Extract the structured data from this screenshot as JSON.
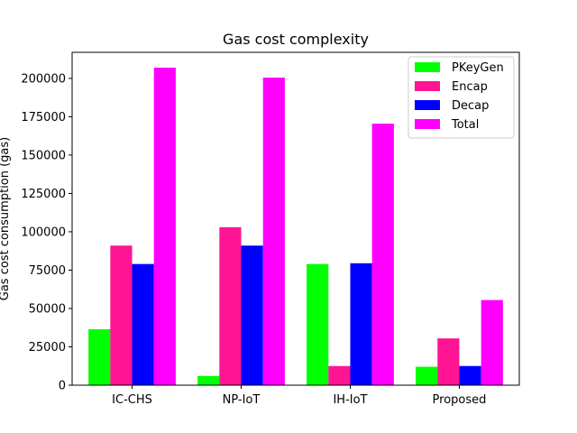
{
  "chart_data": {
    "type": "bar",
    "title": "Gas cost complexity",
    "xlabel": "",
    "ylabel": "Gas cost consumption (gas)",
    "categories": [
      "IC-CHS",
      "NP-IoT",
      "IH-IoT",
      "Proposed"
    ],
    "series": [
      {
        "name": "PKeyGen",
        "color": "#00ff00",
        "values": [
          36500,
          6000,
          79000,
          12000
        ]
      },
      {
        "name": "Encap",
        "color": "#ff1493",
        "values": [
          91000,
          103000,
          12500,
          30500
        ]
      },
      {
        "name": "Decap",
        "color": "#0000ff",
        "values": [
          79000,
          91000,
          79500,
          12500
        ]
      },
      {
        "name": "Total",
        "color": "#ff00ff",
        "values": [
          207000,
          200500,
          170500,
          55500
        ]
      }
    ],
    "ylim": [
      0,
      217000
    ],
    "yticks": [
      0,
      25000,
      50000,
      75000,
      100000,
      125000,
      150000,
      175000,
      200000
    ],
    "grid": false,
    "legend": "top-right"
  }
}
